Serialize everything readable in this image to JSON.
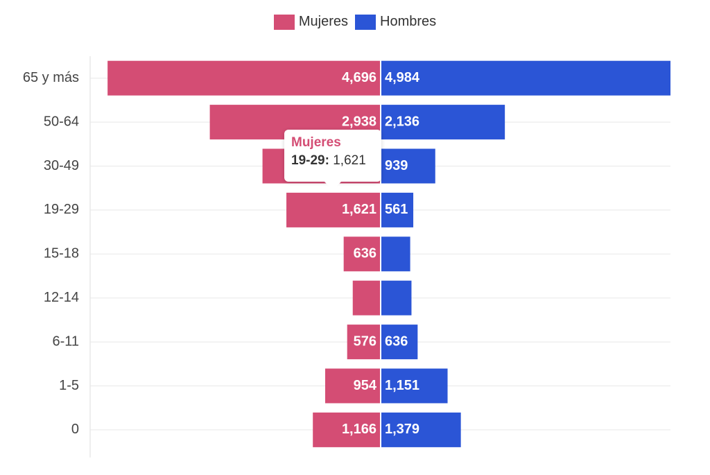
{
  "colors": {
    "mujeres": "#d44d74",
    "hombres": "#2b55d6",
    "grid": "#e8e8e8",
    "axis_text": "#444444",
    "label_text": "#ffffff"
  },
  "legend": {
    "mujeres": "Mujeres",
    "hombres": "Hombres"
  },
  "tooltip": {
    "series": "Mujeres",
    "category": "19-29",
    "separator": ":",
    "value": "1,621"
  },
  "chart_data": {
    "type": "bar",
    "orientation": "horizontal-diverging",
    "categories": [
      "65 y más",
      "50-64",
      "30-49",
      "19-29",
      "15-18",
      "12-14",
      "6-11",
      "1-5",
      "0"
    ],
    "series": [
      {
        "name": "Mujeres",
        "values": [
          4696,
          2938,
          2032,
          1621,
          636,
          480,
          576,
          954,
          1166
        ],
        "labels": [
          "4,696",
          "2,938",
          "",
          "1,621",
          "636",
          "",
          "576",
          "954",
          "1,166"
        ]
      },
      {
        "name": "Hombres",
        "values": [
          4984,
          2136,
          939,
          561,
          508,
          530,
          636,
          1151,
          1379
        ],
        "labels": [
          "4,984",
          "2,136",
          "939",
          "561",
          "",
          "",
          "636",
          "1,151",
          "1,379"
        ]
      }
    ],
    "xlim": [
      -4984,
      4984
    ],
    "grid": true,
    "legend_position": "top-center"
  }
}
